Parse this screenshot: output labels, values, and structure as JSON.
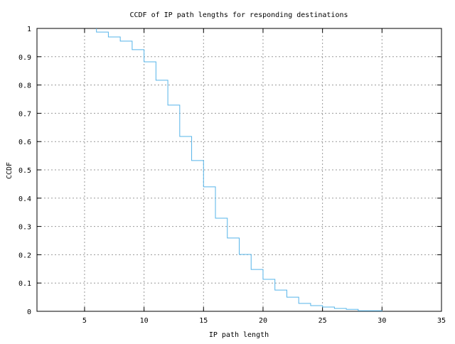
{
  "chart_data": {
    "type": "line",
    "step": true,
    "title": "CCDF of IP path lengths for responding destinations",
    "xlabel": "IP path length",
    "ylabel": "CCDF",
    "xlim": [
      1,
      35
    ],
    "ylim": [
      0,
      1
    ],
    "grid": true,
    "xticks": [
      "5",
      "10",
      "15",
      "20",
      "25",
      "30",
      "35"
    ],
    "yticks": [
      "0",
      "0.1",
      "0.2",
      "0.3",
      "0.4",
      "0.5",
      "0.6",
      "0.7",
      "0.8",
      "0.9",
      "1"
    ],
    "series": [
      {
        "color": "#56b4e9",
        "x": [
          6,
          7,
          8,
          9,
          10,
          11,
          12,
          13,
          14,
          15,
          16,
          17,
          18,
          19,
          20,
          21,
          22,
          23,
          24,
          25,
          26,
          27,
          28,
          30
        ],
        "y": [
          0.987,
          0.97,
          0.955,
          0.925,
          0.882,
          0.817,
          0.729,
          0.618,
          0.533,
          0.44,
          0.329,
          0.259,
          0.201,
          0.148,
          0.113,
          0.075,
          0.05,
          0.028,
          0.02,
          0.015,
          0.01,
          0.007,
          0.002,
          0
        ]
      }
    ]
  }
}
